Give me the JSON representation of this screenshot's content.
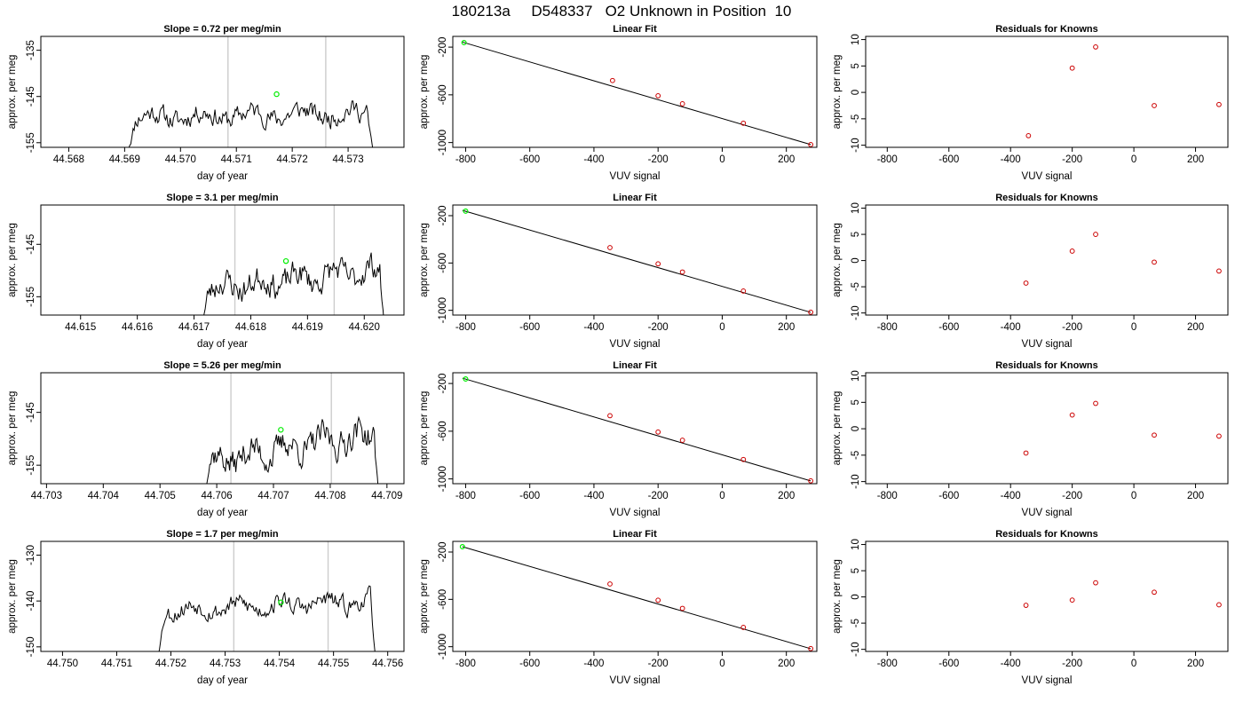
{
  "page": {
    "title": "180213a     D548337   O2 Unknown in Position  10"
  },
  "colors": {
    "trace": "#000000",
    "marker_point": "#00ee00",
    "known_point": "#cc0000",
    "vertical_line": "#cccccc"
  },
  "chart_data": [
    {
      "type": "line",
      "panel": "time-series",
      "row": 1,
      "title": "Slope =  0.72  per meg/min",
      "xlabel": "day of year",
      "ylabel": "approx. per meg",
      "xlim": [
        44.5675,
        44.574
      ],
      "ylim": [
        -156,
        -132
      ],
      "xticks": [
        "44.568",
        "44.569",
        "44.570",
        "44.571",
        "44.572",
        "44.573"
      ],
      "yticks": [
        "-135",
        "-145",
        "-155"
      ],
      "trace": {
        "x_start": 44.56905,
        "x_end": 44.57345,
        "n": 220,
        "base": -149.5,
        "slope": 0.9,
        "amp": 2.2,
        "seed": 11,
        "start_drop": -157,
        "end_drop": -157
      },
      "vlines": [
        44.57085,
        44.5726
      ],
      "marker": {
        "x": 44.57172,
        "y": -144.5
      },
      "grid": false,
      "legend": "none"
    },
    {
      "type": "scatter",
      "panel": "linear-fit",
      "row": 1,
      "title": "Linear Fit",
      "xlabel": "VUV signal",
      "ylabel": "approx. per meg",
      "xlim": [
        -840,
        295
      ],
      "ylim": [
        -1040,
        -110
      ],
      "xticks": [
        "-800",
        "-600",
        "-400",
        "-200",
        "0",
        "200"
      ],
      "yticks": [
        "-200",
        "-600",
        "-1000"
      ],
      "knowns": [
        {
          "x": -342,
          "y": -480
        },
        {
          "x": -200,
          "y": -608
        },
        {
          "x": -124,
          "y": -675
        },
        {
          "x": 66,
          "y": -838
        },
        {
          "x": 276,
          "y": -1017
        }
      ],
      "unknown": {
        "x": -805,
        "y": -162
      },
      "fit_line": [
        {
          "x": -810,
          "y": -158
        },
        {
          "x": 276,
          "y": -1017
        }
      ],
      "grid": false,
      "legend": "none"
    },
    {
      "type": "scatter",
      "panel": "residuals",
      "row": 1,
      "title": "Residuals for Knowns",
      "xlabel": "VUV signal",
      "ylabel": "approx. per meg",
      "xlim": [
        -870,
        305
      ],
      "ylim": [
        -10.4,
        10.6
      ],
      "xticks": [
        "-800",
        "-600",
        "-400",
        "-200",
        "0",
        "200"
      ],
      "yticks": [
        "10",
        "5",
        "0",
        "-5",
        "-10"
      ],
      "points": [
        {
          "x": -342,
          "y": -8.2
        },
        {
          "x": -200,
          "y": 4.6
        },
        {
          "x": -124,
          "y": 8.6
        },
        {
          "x": 66,
          "y": -2.5
        },
        {
          "x": 276,
          "y": -2.3
        }
      ],
      "grid": false,
      "legend": "none"
    },
    {
      "type": "line",
      "panel": "time-series",
      "row": 2,
      "title": "Slope =  3.1  per meg/min",
      "xlabel": "day of year",
      "ylabel": "approx. per meg",
      "xlim": [
        44.6143,
        44.6207
      ],
      "ylim": [
        -158.5,
        -137.5
      ],
      "xticks": [
        "44.615",
        "44.616",
        "44.617",
        "44.618",
        "44.619",
        "44.620"
      ],
      "yticks": [
        "-145",
        "-155"
      ],
      "trace": {
        "x_start": 44.61714,
        "x_end": 44.62035,
        "n": 170,
        "base": -153.5,
        "slope": 3.6,
        "amp": 2.6,
        "seed": 23,
        "start_drop": -160,
        "end_drop": -160
      },
      "vlines": [
        44.61772,
        44.61947
      ],
      "marker": {
        "x": 44.61862,
        "y": -148.2
      },
      "grid": false,
      "legend": "none"
    },
    {
      "type": "scatter",
      "panel": "linear-fit",
      "row": 2,
      "title": "Linear Fit",
      "xlabel": "VUV signal",
      "ylabel": "approx. per meg",
      "xlim": [
        -840,
        295
      ],
      "ylim": [
        -1040,
        -110
      ],
      "xticks": [
        "-800",
        "-600",
        "-400",
        "-200",
        "0",
        "200"
      ],
      "yticks": [
        "-200",
        "-600",
        "-1000"
      ],
      "knowns": [
        {
          "x": -350,
          "y": -470
        },
        {
          "x": -200,
          "y": -607
        },
        {
          "x": -124,
          "y": -676
        },
        {
          "x": 66,
          "y": -837
        },
        {
          "x": 276,
          "y": -1016
        }
      ],
      "unknown": {
        "x": -800,
        "y": -162
      },
      "fit_line": [
        {
          "x": -810,
          "y": -155
        },
        {
          "x": 276,
          "y": -1017
        }
      ],
      "grid": false,
      "legend": "none"
    },
    {
      "type": "scatter",
      "panel": "residuals",
      "row": 2,
      "title": "Residuals for Knowns",
      "xlabel": "VUV signal",
      "ylabel": "approx. per meg",
      "xlim": [
        -870,
        305
      ],
      "ylim": [
        -10.4,
        10.6
      ],
      "xticks": [
        "-800",
        "-600",
        "-400",
        "-200",
        "0",
        "200"
      ],
      "yticks": [
        "10",
        "5",
        "0",
        "-5",
        "-10"
      ],
      "points": [
        {
          "x": -350,
          "y": -4.3
        },
        {
          "x": -200,
          "y": 1.8
        },
        {
          "x": -124,
          "y": 5.0
        },
        {
          "x": 66,
          "y": -0.3
        },
        {
          "x": 276,
          "y": -2.0
        }
      ],
      "grid": false,
      "legend": "none"
    },
    {
      "type": "line",
      "panel": "time-series",
      "row": 3,
      "title": "Slope =  5.26  per meg/min",
      "xlabel": "day of year",
      "ylabel": "approx. per meg",
      "xlim": [
        44.7029,
        44.7093
      ],
      "ylim": [
        -158.5,
        -137.5
      ],
      "xticks": [
        "44.703",
        "44.704",
        "44.705",
        "44.706",
        "44.707",
        "44.708",
        "44.709"
      ],
      "yticks": [
        "-145",
        "-155"
      ],
      "trace": {
        "x_start": 44.70575,
        "x_end": 44.70885,
        "n": 170,
        "base": -154.5,
        "slope": 5.6,
        "amp": 2.8,
        "seed": 37,
        "start_drop": -160,
        "end_drop": -160
      },
      "vlines": [
        44.70625,
        44.70802
      ],
      "marker": {
        "x": 44.70713,
        "y": -148.3
      },
      "grid": false,
      "legend": "none"
    },
    {
      "type": "scatter",
      "panel": "linear-fit",
      "row": 3,
      "title": "Linear Fit",
      "xlabel": "VUV signal",
      "ylabel": "approx. per meg",
      "xlim": [
        -840,
        295
      ],
      "ylim": [
        -1040,
        -110
      ],
      "xticks": [
        "-800",
        "-600",
        "-400",
        "-200",
        "0",
        "200"
      ],
      "yticks": [
        "-200",
        "-600",
        "-1000"
      ],
      "knowns": [
        {
          "x": -350,
          "y": -470
        },
        {
          "x": -200,
          "y": -607
        },
        {
          "x": -124,
          "y": -676
        },
        {
          "x": 66,
          "y": -837
        },
        {
          "x": 276,
          "y": -1016
        }
      ],
      "unknown": {
        "x": -800,
        "y": -162
      },
      "fit_line": [
        {
          "x": -810,
          "y": -155
        },
        {
          "x": 276,
          "y": -1017
        }
      ],
      "grid": false,
      "legend": "none"
    },
    {
      "type": "scatter",
      "panel": "residuals",
      "row": 3,
      "title": "Residuals for Knowns",
      "xlabel": "VUV signal",
      "ylabel": "approx. per meg",
      "xlim": [
        -870,
        305
      ],
      "ylim": [
        -10.4,
        10.6
      ],
      "xticks": [
        "-800",
        "-600",
        "-400",
        "-200",
        "0",
        "200"
      ],
      "yticks": [
        "10",
        "5",
        "0",
        "-5",
        "-10"
      ],
      "points": [
        {
          "x": -350,
          "y": -4.6
        },
        {
          "x": -200,
          "y": 2.6
        },
        {
          "x": -124,
          "y": 4.8
        },
        {
          "x": 66,
          "y": -1.2
        },
        {
          "x": 276,
          "y": -1.4
        }
      ],
      "grid": false,
      "legend": "none"
    },
    {
      "type": "line",
      "panel": "time-series",
      "row": 4,
      "title": "Slope =  1.7  per meg/min",
      "xlabel": "day of year",
      "ylabel": "approx. per meg",
      "xlim": [
        44.7496,
        44.7563
      ],
      "ylim": [
        -151,
        -127
      ],
      "xticks": [
        "44.750",
        "44.751",
        "44.752",
        "44.753",
        "44.754",
        "44.755",
        "44.756"
      ],
      "yticks": [
        "-130",
        "-140",
        "-150"
      ],
      "trace": {
        "x_start": 44.75175,
        "x_end": 44.75578,
        "n": 200,
        "base": -142,
        "slope": 1.9,
        "amp": 2.0,
        "seed": 53,
        "start_drop": -153,
        "end_drop": -153
      },
      "vlines": [
        44.75316,
        44.7549
      ],
      "marker": {
        "x": 44.75403,
        "y": -140.3
      },
      "grid": false,
      "legend": "none"
    },
    {
      "type": "scatter",
      "panel": "linear-fit",
      "row": 4,
      "title": "Linear Fit",
      "xlabel": "VUV signal",
      "ylabel": "approx. per meg",
      "xlim": [
        -840,
        295
      ],
      "ylim": [
        -1040,
        -110
      ],
      "xticks": [
        "-800",
        "-600",
        "-400",
        "-200",
        "0",
        "200"
      ],
      "yticks": [
        "-200",
        "-600",
        "-1000"
      ],
      "knowns": [
        {
          "x": -350,
          "y": -470
        },
        {
          "x": -200,
          "y": -607
        },
        {
          "x": -124,
          "y": -676
        },
        {
          "x": 66,
          "y": -837
        },
        {
          "x": 276,
          "y": -1016
        }
      ],
      "unknown": {
        "x": -810,
        "y": -155
      },
      "fit_line": [
        {
          "x": -810,
          "y": -155
        },
        {
          "x": 276,
          "y": -1017
        }
      ],
      "grid": false,
      "legend": "none"
    },
    {
      "type": "scatter",
      "panel": "residuals",
      "row": 4,
      "title": "Residuals for Knowns",
      "xlabel": "VUV signal",
      "ylabel": "approx. per meg",
      "xlim": [
        -870,
        305
      ],
      "ylim": [
        -10.4,
        10.6
      ],
      "xticks": [
        "-800",
        "-600",
        "-400",
        "-200",
        "0",
        "200"
      ],
      "yticks": [
        "10",
        "5",
        "0",
        "-5",
        "-10"
      ],
      "points": [
        {
          "x": -350,
          "y": -1.6
        },
        {
          "x": -200,
          "y": -0.6
        },
        {
          "x": -124,
          "y": 2.7
        },
        {
          "x": 66,
          "y": 0.9
        },
        {
          "x": 276,
          "y": -1.5
        }
      ],
      "grid": false,
      "legend": "none"
    }
  ]
}
